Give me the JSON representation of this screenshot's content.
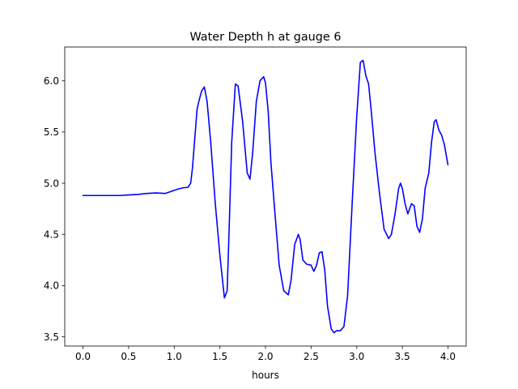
{
  "chart_data": {
    "type": "line",
    "title": "Water Depth h at gauge 6",
    "xlabel": "hours",
    "ylabel": "",
    "xlim": [
      -0.2,
      4.2
    ],
    "ylim": [
      3.41,
      6.33
    ],
    "xticks": [
      0.0,
      0.5,
      1.0,
      1.5,
      2.0,
      2.5,
      3.0,
      3.5,
      4.0
    ],
    "xtick_labels": [
      "0.0",
      "0.5",
      "1.0",
      "1.5",
      "2.0",
      "2.5",
      "3.0",
      "3.5",
      "4.0"
    ],
    "yticks": [
      3.5,
      4.0,
      4.5,
      5.0,
      5.5,
      6.0
    ],
    "ytick_labels": [
      "3.5",
      "4.0",
      "4.5",
      "5.0",
      "5.5",
      "6.0"
    ],
    "grid": false,
    "series": [
      {
        "color": "#0000ff",
        "x": [
          0.0,
          0.2,
          0.4,
          0.5,
          0.6,
          0.7,
          0.8,
          0.9,
          1.0,
          1.05,
          1.1,
          1.15,
          1.18,
          1.2,
          1.25,
          1.27,
          1.3,
          1.33,
          1.36,
          1.4,
          1.45,
          1.5,
          1.55,
          1.58,
          1.6,
          1.63,
          1.67,
          1.7,
          1.75,
          1.8,
          1.83,
          1.86,
          1.9,
          1.94,
          1.98,
          2.0,
          2.03,
          2.06,
          2.1,
          2.15,
          2.2,
          2.25,
          2.28,
          2.32,
          2.36,
          2.38,
          2.41,
          2.45,
          2.5,
          2.53,
          2.56,
          2.59,
          2.62,
          2.65,
          2.68,
          2.72,
          2.75,
          2.78,
          2.82,
          2.86,
          2.9,
          2.95,
          3.0,
          3.04,
          3.07,
          3.1,
          3.13,
          3.16,
          3.2,
          3.25,
          3.3,
          3.35,
          3.38,
          3.42,
          3.46,
          3.48,
          3.5,
          3.53,
          3.56,
          3.6,
          3.63,
          3.66,
          3.69,
          3.72,
          3.75,
          3.79,
          3.82,
          3.85,
          3.87,
          3.9,
          3.93,
          3.96,
          4.0
        ],
        "y": [
          4.88,
          4.88,
          4.88,
          4.885,
          4.89,
          4.9,
          4.905,
          4.9,
          4.93,
          4.945,
          4.955,
          4.96,
          5.0,
          5.15,
          5.72,
          5.8,
          5.9,
          5.94,
          5.8,
          5.4,
          4.8,
          4.3,
          3.88,
          3.95,
          4.5,
          5.4,
          5.97,
          5.95,
          5.6,
          5.1,
          5.04,
          5.3,
          5.8,
          6.0,
          6.04,
          5.98,
          5.7,
          5.2,
          4.75,
          4.2,
          3.95,
          3.91,
          4.05,
          4.4,
          4.5,
          4.45,
          4.25,
          4.21,
          4.2,
          4.14,
          4.2,
          4.32,
          4.33,
          4.15,
          3.8,
          3.58,
          3.54,
          3.56,
          3.56,
          3.6,
          3.9,
          4.8,
          5.65,
          6.18,
          6.2,
          6.05,
          5.97,
          5.7,
          5.3,
          4.9,
          4.55,
          4.46,
          4.5,
          4.7,
          4.95,
          5.0,
          4.95,
          4.8,
          4.7,
          4.8,
          4.78,
          4.58,
          4.52,
          4.65,
          4.95,
          5.1,
          5.4,
          5.6,
          5.62,
          5.52,
          5.47,
          5.38,
          5.18
        ]
      }
    ]
  }
}
